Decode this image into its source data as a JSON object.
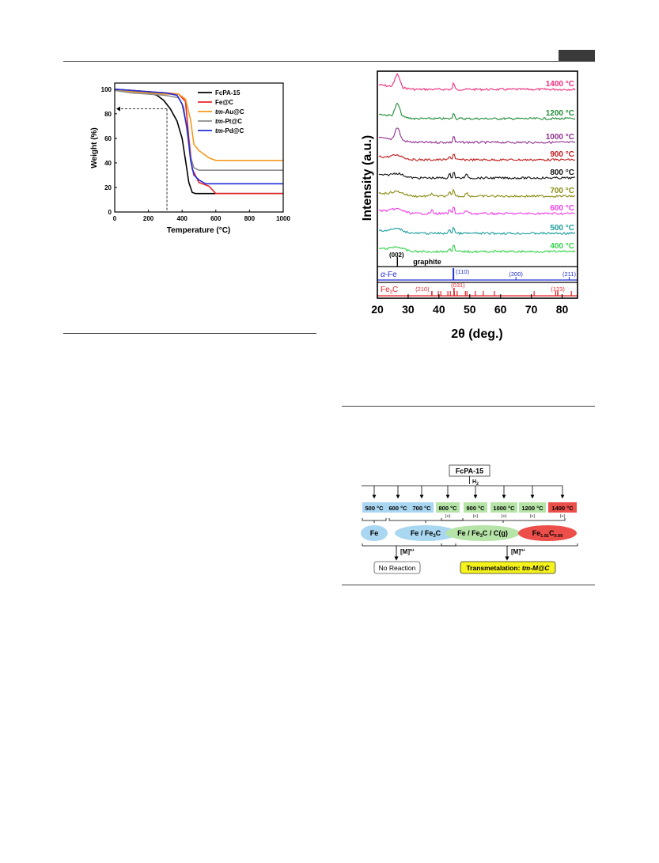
{
  "page": {
    "header_tab_color": "#3a3a3a"
  },
  "chart_data": [
    {
      "type": "line",
      "xlabel": "Temperature (°C)",
      "ylabel": "Weight (%)",
      "xlim": [
        0,
        1000
      ],
      "ylim": [
        0,
        105
      ],
      "xticks": [
        "0",
        "200",
        "400",
        "600",
        "800",
        "1000"
      ],
      "yticks": [
        "0",
        "20",
        "40",
        "60",
        "80",
        "100"
      ],
      "legend_position": "top-right",
      "annotation": {
        "dashed_marker_x": 310,
        "dashed_marker_y": 84
      },
      "series": [
        {
          "name": "FcPA-15",
          "color": "#000000",
          "x": [
            0,
            100,
            200,
            250,
            290,
            330,
            370,
            400,
            420,
            440,
            460,
            480,
            1000
          ],
          "y": [
            100,
            99,
            97,
            95,
            91,
            84,
            74,
            60,
            42,
            24,
            16,
            15,
            15
          ]
        },
        {
          "name": "Fe@C",
          "color": "#e8242a",
          "x": [
            0,
            100,
            200,
            300,
            380,
            420,
            440,
            460,
            500,
            560,
            600,
            1000
          ],
          "y": [
            100,
            99,
            98,
            97,
            96,
            90,
            60,
            35,
            24,
            21,
            15,
            15
          ]
        },
        {
          "name": "tm-Au@C",
          "color": "#f39a1e",
          "x": [
            0,
            100,
            200,
            300,
            380,
            420,
            450,
            470,
            500,
            560,
            600,
            1000
          ],
          "y": [
            100,
            98,
            97,
            96,
            96,
            92,
            75,
            55,
            50,
            44,
            42,
            42
          ]
        },
        {
          "name": "tm-Pt@C",
          "color": "#8c8c8c",
          "x": [
            0,
            100,
            200,
            300,
            380,
            410,
            430,
            450,
            470,
            500,
            1000
          ],
          "y": [
            99,
            97,
            96,
            95,
            93,
            85,
            65,
            45,
            36,
            34,
            34
          ]
        },
        {
          "name": "tm-Pd@C",
          "color": "#1f2fd6",
          "x": [
            0,
            100,
            200,
            300,
            370,
            400,
            430,
            450,
            470,
            500,
            540,
            1000
          ],
          "y": [
            100,
            99,
            98,
            97,
            95,
            88,
            68,
            42,
            30,
            26,
            23,
            23
          ]
        }
      ],
      "legend": [
        {
          "prefix": "",
          "text": "FcPA-15",
          "color": "#000000"
        },
        {
          "prefix": "",
          "text": "Fe@C",
          "color": "#e8242a"
        },
        {
          "prefix": "tm",
          "text": "-Au@C",
          "color": "#f39a1e"
        },
        {
          "prefix": "tm",
          "text": "-Pt@C",
          "color": "#8c8c8c"
        },
        {
          "prefix": "tm",
          "text": "-Pd@C",
          "color": "#1f2fd6"
        }
      ]
    },
    {
      "type": "line",
      "xlabel": "2θ (deg.)",
      "ylabel": "Intensity (a.u.)",
      "xlim": [
        20,
        85
      ],
      "xticks": [
        "20",
        "30",
        "40",
        "50",
        "60",
        "70",
        "80"
      ],
      "series": [
        {
          "name": "1400 °C",
          "color": "#ee2a7b"
        },
        {
          "name": "1200 °C",
          "color": "#1e8c35"
        },
        {
          "name": "1000 °C",
          "color": "#8e2f8e"
        },
        {
          "name": "900 °C",
          "color": "#c11b1b"
        },
        {
          "name": "800 °C",
          "color": "#111111"
        },
        {
          "name": "700 °C",
          "color": "#8a8a10"
        },
        {
          "name": "600 °C",
          "color": "#ef3de6"
        },
        {
          "name": "500 °C",
          "color": "#1c9d9d"
        },
        {
          "name": "400 °C",
          "color": "#32d24a"
        }
      ],
      "reference_panels": [
        {
          "label_prefix": "α",
          "label": "-Fe",
          "color": "#1f2fd6",
          "peaks": [
            {
              "x": 44.7,
              "label": "(110)"
            },
            {
              "x": 65.0,
              "label": "(200)"
            },
            {
              "x": 82.3,
              "label": "(211)"
            }
          ]
        },
        {
          "label": "Fe",
          "label_sub": "3",
          "label_suffix": "C",
          "color": "#e8242a",
          "peaks": [
            {
              "x": 37.7,
              "label": "(210)"
            },
            {
              "x": 44.9,
              "label": "(031)"
            },
            {
              "x": 78.6,
              "label": "(123)"
            }
          ],
          "minor_peaks": [
            39.8,
            40.6,
            42.9,
            43.7,
            45.0,
            45.9,
            48.6,
            49.1,
            51.8,
            54.4,
            58.0,
            70.9,
            77.9,
            83.0
          ]
        }
      ],
      "graphite": {
        "label": "graphite",
        "peak_label": "(002)",
        "peak_x": 26.5
      }
    }
  ],
  "scheme": {
    "top_label": "FcPA-15",
    "h2": "H",
    "h2_sub": "2",
    "temps": [
      "500 °C",
      "600 °C",
      "700 °C",
      "800 °C",
      "900 °C",
      "1000 °C",
      "1200 °C",
      "1400 °C"
    ],
    "plus": [
      "(+)",
      "(+)",
      "(+)",
      "(+)",
      "(+)"
    ],
    "phase1": "Fe",
    "phase2_a": "Fe / Fe",
    "phase2_sub": "3",
    "phase2_b": "C",
    "phase3_a": "Fe / Fe",
    "phase3_sub": "3",
    "phase3_b": "C / C(g)",
    "phase4_a": "Fe",
    "phase4_sub1": "1.91",
    "phase4_b": "C",
    "phase4_sub2": "0.09",
    "metal_label": "[M]",
    "metal_sup": "n+",
    "no_reaction": "No Reaction",
    "transmetal_a": "Transmetalation: ",
    "transmetal_b": "tm-M@C",
    "colors": {
      "blue_box": "#a9d6f0",
      "green_box": "#b6e3a7",
      "red_box": "#ec4f4a",
      "yellow": "#f5f21c"
    }
  }
}
